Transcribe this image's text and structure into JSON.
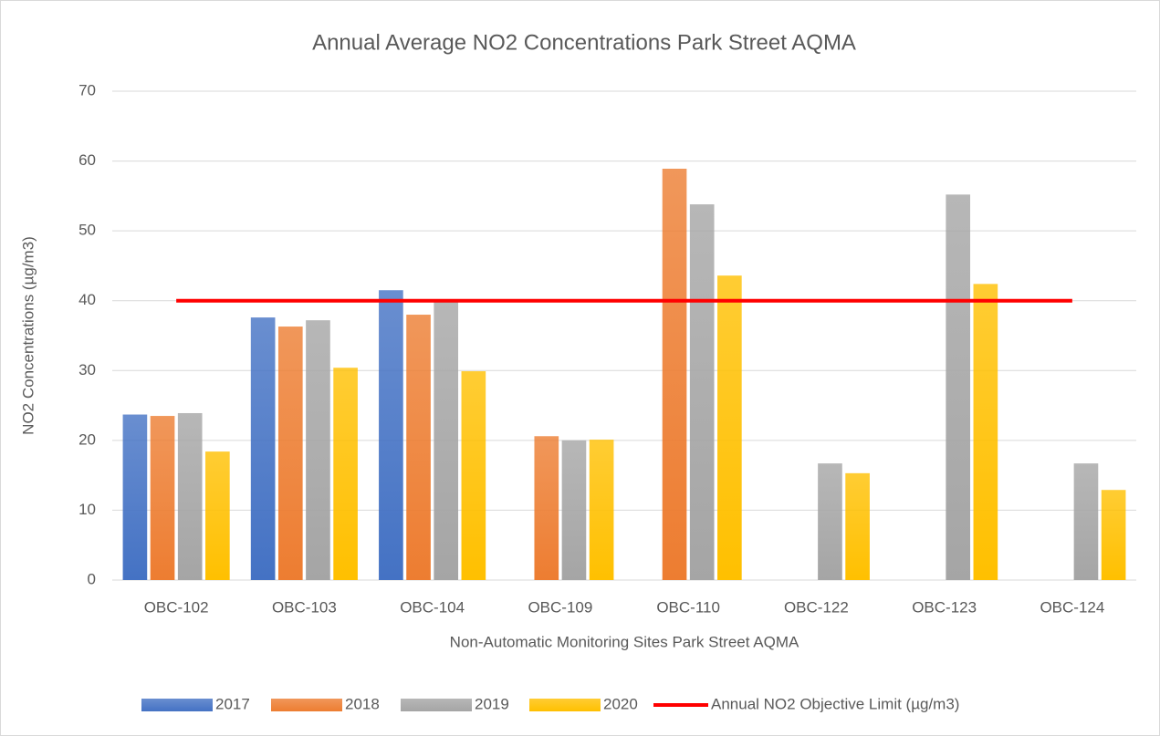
{
  "chart_data": {
    "type": "bar",
    "title": "Annual Average NO2 Concentrations Park Street AQMA",
    "x_label": "Non-Automatic Monitoring Sites Park Street AQMA",
    "y_label": "NO2 Concentrations (µg/m3)",
    "categories": [
      "OBC-102",
      "OBC-103",
      "OBC-104",
      "OBC-109",
      "OBC-110",
      "OBC-122",
      "OBC-123",
      "OBC-124"
    ],
    "series": [
      {
        "name": "2017",
        "color": "#4472c4",
        "values": [
          23.7,
          37.6,
          41.5,
          null,
          null,
          null,
          null,
          null
        ]
      },
      {
        "name": "2018",
        "color": "#ed7d31",
        "values": [
          23.5,
          36.3,
          38.0,
          20.6,
          58.9,
          null,
          null,
          null
        ]
      },
      {
        "name": "2019",
        "color": "#a5a5a5",
        "values": [
          23.9,
          37.2,
          39.9,
          20.0,
          53.8,
          16.7,
          55.2,
          16.7
        ]
      },
      {
        "name": "2020",
        "color": "#ffc000",
        "values": [
          18.4,
          30.4,
          29.9,
          20.1,
          43.6,
          15.3,
          42.4,
          12.9
        ]
      },
      {
        "name": "Annual NO2 Objective Limit (µg/m3)",
        "type": "line",
        "color": "#ff0000",
        "values": [
          40,
          40,
          40,
          40,
          40,
          40,
          40,
          40
        ]
      }
    ],
    "ylim": [
      0,
      70
    ],
    "yticks": [
      0,
      10,
      20,
      30,
      40,
      50,
      60,
      70
    ],
    "grid": true,
    "legend": "bottom"
  }
}
